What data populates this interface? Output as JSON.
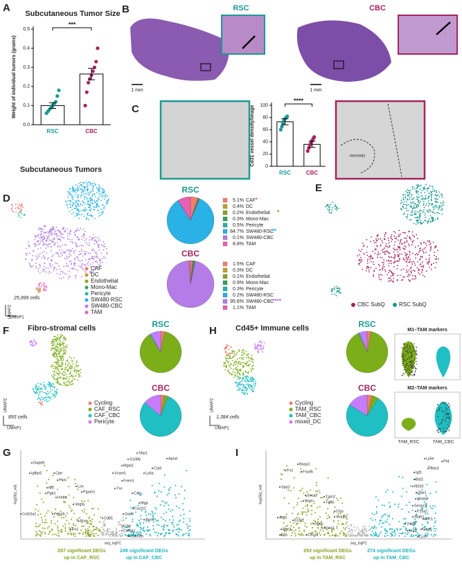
{
  "panel_labels": [
    "A",
    "B",
    "C",
    "D",
    "E",
    "F",
    "G",
    "H",
    "I"
  ],
  "panel_b": {
    "labels": [
      "RSC",
      "CBC"
    ],
    "scale_bars": [
      "1 mm",
      "1 mm"
    ]
  },
  "panel_c": {
    "image_note": "necrosis"
  },
  "panel_d": {
    "title": "Subcutaneous Tumors",
    "cell_count": "25,999 cells",
    "umap_axes": [
      "UMAP2",
      "UMAP1"
    ],
    "legend": [
      "CAF",
      "DC",
      "Endothelial",
      "Mono-Mac",
      "Pericyte",
      "SW480-RSC",
      "SW480-CBC",
      "TAM"
    ],
    "colors": [
      "#f07f6e",
      "#c69c2a",
      "#8aa323",
      "#2aa55a",
      "#27b4a6",
      "#2ab1e6",
      "#b47ce6",
      "#e85fb4"
    ]
  },
  "panel_e": {
    "legend": [
      "CBC SubQ",
      "RSC SubQ"
    ],
    "colors": [
      "#a5245e",
      "#1a9a94"
    ]
  },
  "panel_f": {
    "title": "Fibro-stromal cells",
    "cell_count": "893 cells",
    "umap_axes": [
      "UMAP2",
      "UMAP1"
    ],
    "legend": [
      "Cycling",
      "CAF_RSC",
      "CAF_CBC",
      "Pericyte"
    ],
    "colors": [
      "#f07f6e",
      "#7cae1a",
      "#1fbfc4",
      "#c77cff"
    ]
  },
  "panel_h": {
    "title": "Cd45+ Immune cells",
    "cell_count": "1,384 cells",
    "umap_axes": [
      "UMAP2",
      "UMAP1"
    ],
    "legend": [
      "Cycling",
      "TAM_RSC",
      "TAM_CBC",
      "mixed_DC"
    ],
    "colors": [
      "#f07f6e",
      "#7cae1a",
      "#1fbfc4",
      "#c77cff"
    ],
    "violin_titles": [
      "M1–TAM markers",
      "M2–TAM markers"
    ],
    "violin_categories": [
      "TAM_RSC",
      "TAM_CBC"
    ]
  },
  "panel_g": {
    "x_label": "avg_logFC",
    "y_label": "-log10(p_val)",
    "footer_left": [
      "287 significant DEGs",
      "up in CAF_RSC"
    ],
    "footer_right": [
      "249 significant DEGs",
      "up in CAF_CBC"
    ],
    "genes": [
      "Gapdh",
      "Igfbp5",
      "Cpe",
      "Pkm",
      "Mif",
      "Pgk1",
      "Lox",
      "Pgam1",
      "Inhba",
      "Vegfa",
      "Col10a1",
      "Fabp5",
      "Rras",
      "Fn1",
      "Cd81",
      "Sfrp1",
      "S100b",
      "Mgst1",
      "Apod",
      "Cst3",
      "Ly6a",
      "Vcam1",
      "Frem1",
      "Tnc",
      "C4b",
      "Mgp",
      "Cxcl12",
      "Gas6",
      "Apoe",
      "Lbp",
      "Col6a1",
      "Cdkn2b"
    ]
  },
  "panel_i": {
    "x_label": "avg_logFC",
    "y_label": "-log10(p_val)",
    "footer_left": [
      "293 significant DEGs",
      "up in TAM_RSC"
    ],
    "footer_right": [
      "274 significant DEGs",
      "up in TAM_CBC"
    ],
    "genes": [
      "Ly6e",
      "Pf4",
      "Ifitm3",
      "Igf1",
      "Basp1",
      "Fn1",
      "Fxyd5",
      "Bst2",
      "Ifi203",
      "Zbp1",
      "Mndal",
      "Spp1",
      "Socs3",
      "Tgm2",
      "Srgn",
      "Tgfbi",
      "Serinc3",
      "Ctss",
      "Vcam1",
      "Arg1",
      "Ecm1",
      "F13a1",
      "Stab1",
      "Mrc1",
      "Vsig4",
      "Gas6",
      "Nrp1",
      "Itgax",
      "Anxa1",
      "Rgs1",
      "Il1b",
      "Cxcr4",
      "Ccl7"
    ]
  },
  "chart_data": [
    {
      "type": "bar",
      "title": "Subcutaneous Tumor Size",
      "y_label": "Weight of individual tumors (grams)",
      "categories": [
        "RSC",
        "CBC"
      ],
      "values": [
        0.1,
        0.265
      ],
      "errors": [
        0.015,
        0.03
      ],
      "colors": [
        "#1a9a94",
        "#a5245e"
      ],
      "points": [
        [
          0.06,
          0.07,
          0.08,
          0.09,
          0.1,
          0.11,
          0.12,
          0.15,
          0.18
        ],
        [
          0.1,
          0.17,
          0.22,
          0.24,
          0.26,
          0.28,
          0.3,
          0.33,
          0.4
        ]
      ],
      "ylim": [
        0,
        0.5
      ],
      "yticks": [
        {
          "value": 0,
          "label": "0.0"
        },
        0.1,
        0.2,
        0.3,
        0.4,
        0.5
      ],
      "annotation": "***"
    },
    {
      "type": "bar",
      "y_label": "Cd31 vessel density/image",
      "categories": [
        "RSC",
        "CBC"
      ],
      "values": [
        73,
        36
      ],
      "errors": [
        5,
        5
      ],
      "colors": [
        "#1a9a94",
        "#a5245e"
      ],
      "points": [
        [
          60,
          65,
          70,
          75,
          78,
          80,
          82
        ],
        [
          25,
          30,
          35,
          38,
          42,
          45,
          48
        ]
      ],
      "ylim": [
        0,
        100
      ],
      "yticks": [
        0,
        20,
        40,
        60,
        80,
        100
      ],
      "annotation": "****"
    },
    {
      "type": "pie",
      "title": "RSC",
      "title_color": "#1a9a94",
      "categories": [
        "CAF",
        "DC",
        "Endothelial",
        "Mono-Mac",
        "Pericyte",
        "SW480-RSC",
        "SW480-CBC",
        "TAM"
      ],
      "values": [
        5.1,
        0.4,
        0.2,
        0.3,
        0.5,
        84.7,
        0.1,
        8.8
      ],
      "value_labels": [
        "5.1%",
        "0.4%",
        "0.2%",
        "0.3%",
        "0.5%",
        "84.7%",
        "0.1%",
        "8.8%"
      ],
      "colors": [
        "#f07f6e",
        "#c69c2a",
        "#8aa323",
        "#2aa55a",
        "#27b4a6",
        "#2ab1e6",
        "#b47ce6",
        "#e85fb4"
      ],
      "markers": {
        "CAF": "*",
        "Endothelial": "*",
        "SW480-RSC": "**"
      }
    },
    {
      "type": "pie",
      "title": "CBC",
      "title_color": "#a5245e",
      "categories": [
        "CAF",
        "DC",
        "Endothelial",
        "Mono-Mac",
        "Pericyte",
        "SW480-RSC",
        "SW480-CBC",
        "TAM"
      ],
      "values": [
        1.5,
        0.3,
        0.1,
        0.9,
        0.3,
        0.2,
        95.6,
        1.1
      ],
      "value_labels": [
        "1.5%",
        "0.3%",
        "0.1%",
        "0.9%",
        "0.3%",
        "0.2%",
        "95.6%",
        "1.1%"
      ],
      "colors": [
        "#f07f6e",
        "#c69c2a",
        "#8aa323",
        "#2aa55a",
        "#27b4a6",
        "#2ab1e6",
        "#b47ce6",
        "#e85fb4"
      ],
      "markers": {
        "SW480-CBC": "****"
      }
    },
    {
      "type": "pie",
      "title": "RSC",
      "title_color": "#1a9a94",
      "categories": [
        "Cycling",
        "CAF_RSC",
        "CAF_CBC",
        "Pericyte"
      ],
      "values": [
        3,
        88,
        1,
        8
      ],
      "colors": [
        "#f07f6e",
        "#7cae1a",
        "#1fbfc4",
        "#c77cff"
      ]
    },
    {
      "type": "pie",
      "title": "CBC",
      "title_color": "#a5245e",
      "categories": [
        "Cycling",
        "CAF_RSC",
        "CAF_CBC",
        "Pericyte"
      ],
      "values": [
        3,
        3,
        80,
        14
      ],
      "colors": [
        "#f07f6e",
        "#7cae1a",
        "#1fbfc4",
        "#c77cff"
      ]
    },
    {
      "type": "pie",
      "title": "RSC",
      "title_color": "#1a9a94",
      "categories": [
        "Cycling",
        "TAM_RSC",
        "TAM_CBC",
        "mixed_DC"
      ],
      "values": [
        3,
        90,
        1,
        6
      ],
      "colors": [
        "#f07f6e",
        "#7cae1a",
        "#1fbfc4",
        "#c77cff"
      ]
    },
    {
      "type": "pie",
      "title": "CBC",
      "title_color": "#a5245e",
      "categories": [
        "Cycling",
        "TAM_RSC",
        "TAM_CBC",
        "mixed_DC"
      ],
      "values": [
        4,
        5,
        75,
        16
      ],
      "colors": [
        "#f07f6e",
        "#7cae1a",
        "#1fbfc4",
        "#c77cff"
      ]
    }
  ]
}
